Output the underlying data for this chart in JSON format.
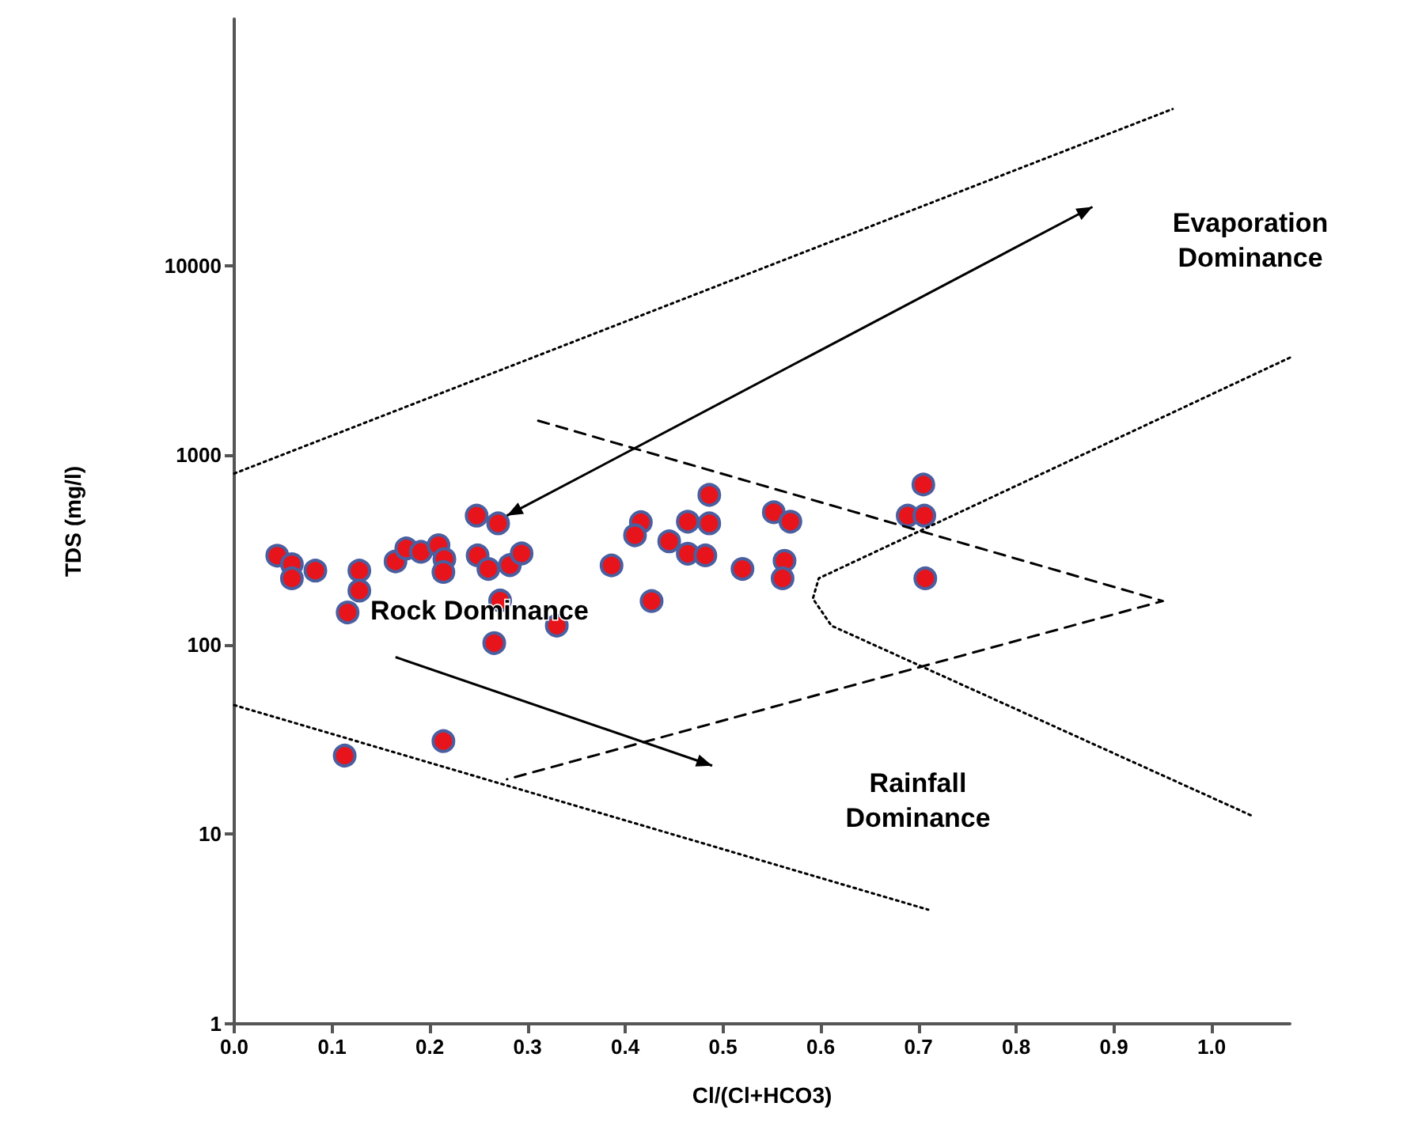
{
  "chart_data": {
    "type": "scatter",
    "xlabel": "Cl/(Cl+HCO3)",
    "ylabel": "TDS (mg/l)",
    "xlim": [
      0,
      1.08
    ],
    "ylim": [
      1,
      200000
    ],
    "log": "y",
    "grid": false,
    "marker": "circle",
    "xticks": [
      {
        "value": 0,
        "label": "0.0"
      },
      {
        "value": 0.1,
        "label": "0.1"
      },
      {
        "value": 0.2,
        "label": "0.2"
      },
      {
        "value": 0.3,
        "label": "0.3"
      },
      {
        "value": 0.4,
        "label": "0.4"
      },
      {
        "value": 0.5,
        "label": "0.5"
      },
      {
        "value": 0.6,
        "label": "0.6"
      },
      {
        "value": 0.7,
        "label": "0.7"
      },
      {
        "value": 0.8,
        "label": "0.8"
      },
      {
        "value": 0.9,
        "label": "0.9"
      },
      {
        "value": 1,
        "label": "1.0"
      }
    ],
    "yticks": [
      1,
      10,
      100,
      1000,
      10000
    ],
    "annotations": [
      "Evaporation\nDominance",
      "Rock Dominance",
      "Rainfall\nDominance"
    ],
    "series": [
      {
        "type": "line",
        "color": "#000000",
        "line_style": "dotted",
        "marker": "none",
        "x": [
          0,
          0.96
        ],
        "values": [
          800,
          67000
        ]
      },
      {
        "type": "line",
        "color": "#000000",
        "line_style": "dotted",
        "marker": "none",
        "x": [
          0,
          0.71
        ],
        "values": [
          48,
          4
        ]
      },
      {
        "type": "line",
        "color": "#000000",
        "line_style": "dotted",
        "marker": "none",
        "x": [
          1.08,
          0.598,
          0.592,
          0.611,
          1.04
        ],
        "values": [
          3270,
          224,
          175,
          126,
          12.6
        ]
      },
      {
        "type": "line",
        "color": "#000000",
        "line_style": "dashed",
        "marker": "none",
        "x": [
          0.311,
          0.95,
          0.279
        ],
        "values": [
          1520,
          170,
          19.5
        ]
      },
      {
        "color": "#e8141c",
        "x": [
          0.044,
          0.059,
          0.059,
          0.083,
          0.128,
          0.128,
          0.116,
          0.165,
          0.176,
          0.191,
          0.209,
          0.215,
          0.214,
          0.248,
          0.27,
          0.249,
          0.26,
          0.282,
          0.294,
          0.272,
          0.266,
          0.33,
          0.386,
          0.416,
          0.41,
          0.427,
          0.445,
          0.464,
          0.486,
          0.486,
          0.464,
          0.482,
          0.52,
          0.552,
          0.569,
          0.563,
          0.561,
          0.705,
          0.689,
          0.706,
          0.707,
          0.113,
          0.214
        ],
        "values": [
          295,
          266,
          224,
          246,
          246,
          193,
          148,
          275,
          322,
          309,
          335,
          283,
          242,
          480,
          437,
          296,
          251,
          263,
          303,
          171,
          102,
          126,
          262,
          443,
          378,
          170,
          351,
          446,
          617,
          437,
          302,
          296,
          251,
          500,
          446,
          277,
          224,
          700,
          480,
          480,
          224,
          26,
          31
        ]
      }
    ]
  }
}
